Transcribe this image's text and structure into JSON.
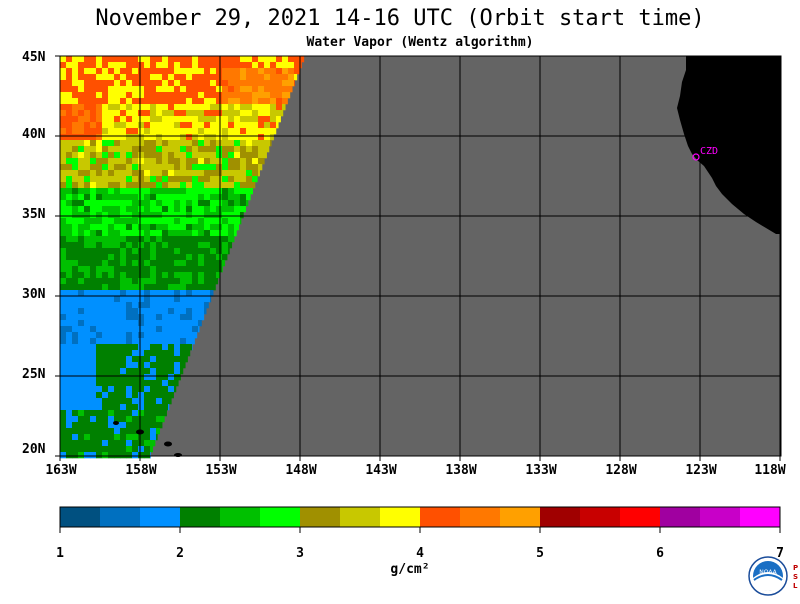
{
  "title": "November 29, 2021  14-16 UTC  (Orbit start time)",
  "subtitle": "Water Vapor (Wentz algorithm)",
  "map": {
    "lon_range": [
      -163,
      -118
    ],
    "lat_range": [
      20,
      45
    ],
    "lat_labels": [
      "45N",
      "40N",
      "35N",
      "30N",
      "25N",
      "20N"
    ],
    "lon_labels": [
      "163W",
      "158W",
      "153W",
      "148W",
      "143W",
      "138W",
      "133W",
      "128W",
      "123W",
      "118W"
    ],
    "station_label": "CZD",
    "no_data_color": "#646464",
    "land_color": "#000000",
    "grid_color": "#000000"
  },
  "colorbar": {
    "ticks": [
      "1",
      "2",
      "3",
      "4",
      "5",
      "6",
      "7"
    ],
    "unit": "g/cm²",
    "colors": [
      "#005080",
      "#0070c0",
      "#0090ff",
      "#008000",
      "#00c000",
      "#00ff00",
      "#a09000",
      "#c8c800",
      "#ffff00",
      "#ff5000",
      "#ff7800",
      "#ffa000",
      "#a00000",
      "#c80000",
      "#ff0000",
      "#a000a0",
      "#c800c8",
      "#ff00ff"
    ]
  },
  "logo": {
    "text": "NOAA",
    "side_text": "PSL"
  }
}
